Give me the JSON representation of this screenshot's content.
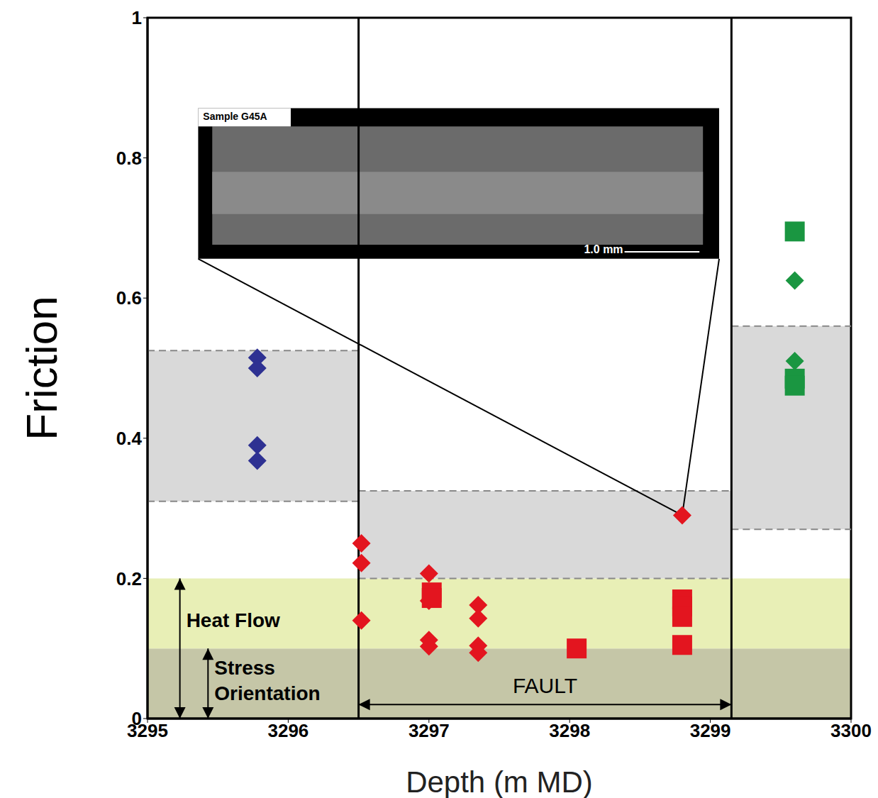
{
  "chart_data": {
    "type": "scatter",
    "x_label": "Depth (m MD)",
    "y_label": "Friction",
    "xlim": [
      3295,
      3300
    ],
    "xticks": [
      3295,
      3296,
      3297,
      3298,
      3299,
      3300
    ],
    "ylim": [
      0,
      1
    ],
    "yticks": [
      0,
      0.2,
      0.4,
      0.6,
      0.8,
      1
    ],
    "grid": false,
    "series": [
      {
        "color": "#2e3192",
        "marker": "diamond",
        "x": [
          3295.78,
          3295.78,
          3295.78,
          3295.78
        ],
        "values": [
          0.515,
          0.5,
          0.39,
          0.368
        ]
      },
      {
        "color": "#e3151f",
        "marker": "diamond",
        "x": [
          3296.52,
          3296.52,
          3296.52,
          3297.0,
          3297.0,
          3297.0,
          3297.0,
          3297.35,
          3297.35,
          3297.35,
          3297.35,
          3298.8
        ],
        "values": [
          0.25,
          0.222,
          0.14,
          0.207,
          0.168,
          0.112,
          0.103,
          0.162,
          0.143,
          0.104,
          0.094,
          0.29
        ]
      },
      {
        "color": "#e3151f",
        "marker": "square",
        "x": [
          3297.02,
          3297.02,
          3298.05,
          3298.8,
          3298.8,
          3298.8,
          3298.8
        ],
        "values": [
          0.18,
          0.172,
          0.1,
          0.17,
          0.16,
          0.145,
          0.105
        ]
      },
      {
        "color": "#1a9641",
        "marker": "square",
        "x": [
          3299.6,
          3299.6,
          3299.6
        ],
        "values": [
          0.695,
          0.485,
          0.475
        ]
      },
      {
        "color": "#1a9641",
        "marker": "diamond",
        "x": [
          3299.6,
          3299.6
        ],
        "values": [
          0.625,
          0.51
        ]
      }
    ],
    "regions": [
      {
        "x": [
          3295,
          3300
        ],
        "y": [
          0,
          0.1
        ],
        "color": "#c5c6a7"
      },
      {
        "x": [
          3295,
          3300
        ],
        "y": [
          0.1,
          0.2
        ],
        "color": "#e8efb6"
      },
      {
        "x": [
          3295,
          3296.5
        ],
        "y": [
          0.31,
          0.525
        ],
        "color": "#d9d9d9",
        "line_style": "dashed"
      },
      {
        "x": [
          3296.5,
          3299.15
        ],
        "y": [
          0.2,
          0.325
        ],
        "color": "#d9d9d9",
        "line_style": "dashed"
      },
      {
        "x": [
          3299.15,
          3300
        ],
        "y": [
          0.27,
          0.56
        ],
        "color": "#d9d9d9",
        "line_style": "dashed"
      }
    ],
    "vlines": [
      3296.5,
      3299.15
    ],
    "annotations": [
      {
        "text": "Heat Flow",
        "arrow": {
          "axis": "y",
          "from": 0,
          "to": 0.2
        }
      },
      {
        "text": "Stress Orientation",
        "arrow": {
          "axis": "y",
          "from": 0,
          "to": 0.1
        }
      },
      {
        "text": "FAULT",
        "arrow": {
          "axis": "x",
          "from": 3296.5,
          "to": 3299.15
        }
      }
    ],
    "inset": {
      "title": "Sample G45A",
      "scale_label": "1.0 mm"
    }
  }
}
